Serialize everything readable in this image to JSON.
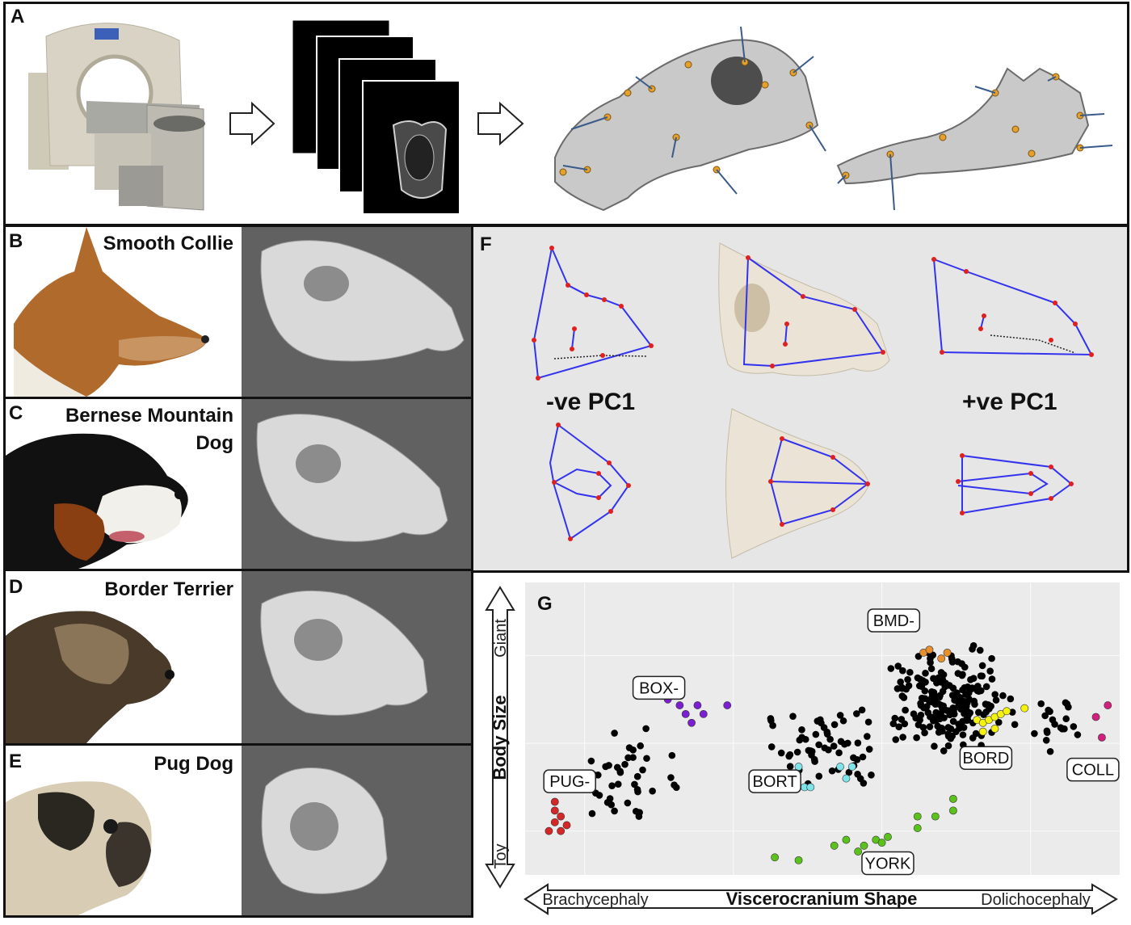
{
  "panels": {
    "a": "A",
    "b": "B",
    "c": "C",
    "d": "D",
    "e": "E",
    "f": "F",
    "g": "G"
  },
  "breeds": {
    "b": "Smooth Collie",
    "c_line1": "Bernese Mountain",
    "c_line2": "Dog",
    "d": "Border Terrier",
    "e": "Pug Dog"
  },
  "pc": {
    "neg": "-ve PC1",
    "pos": "+ve PC1"
  },
  "scatter": {
    "y_title": "Body Size",
    "y_top": "Giant",
    "y_bottom": "Toy",
    "x_title": "Viscerocranium Shape",
    "x_left": "Brachycephaly",
    "x_right": "Dolichocephaly",
    "labels": {
      "bmd": "BMD-",
      "box": "BOX-",
      "pug": "PUG-",
      "bort": "BORT",
      "bord": "BORD",
      "coll": "COLL",
      "york": "YORK"
    },
    "colors": {
      "other": "#000000",
      "pug": "#d62728",
      "box": "#7b1fd1",
      "bmd": "#e8902b",
      "bord": "#f5f20c",
      "bort": "#7fe3ea",
      "coll": "#d1207e",
      "york": "#5bc21c",
      "background": "#ebebeb"
    }
  },
  "chart_data": {
    "type": "scatter",
    "xlabel": "Viscerocranium Shape",
    "ylabel": "Body Size",
    "x_extremes": [
      "Brachycephaly",
      "Dolichocephaly"
    ],
    "y_extremes": [
      "Toy",
      "Giant"
    ],
    "grid": true,
    "series": [
      {
        "name": "PUG-",
        "points": [
          [
            0.05,
            0.18
          ],
          [
            0.06,
            0.2
          ],
          [
            0.04,
            0.15
          ],
          [
            0.05,
            0.22
          ],
          [
            0.07,
            0.17
          ],
          [
            0.08,
            0.3
          ],
          [
            0.09,
            0.32
          ],
          [
            0.05,
            0.25
          ],
          [
            0.06,
            0.15
          ]
        ]
      },
      {
        "name": "BOX-",
        "points": [
          [
            0.24,
            0.6
          ],
          [
            0.25,
            0.62
          ],
          [
            0.26,
            0.58
          ],
          [
            0.27,
            0.55
          ],
          [
            0.28,
            0.52
          ],
          [
            0.29,
            0.58
          ],
          [
            0.3,
            0.55
          ],
          [
            0.34,
            0.58
          ]
        ]
      },
      {
        "name": "BMD-",
        "points": [
          [
            0.67,
            0.76
          ],
          [
            0.68,
            0.77
          ],
          [
            0.7,
            0.74
          ],
          [
            0.71,
            0.76
          ]
        ]
      },
      {
        "name": "BORD",
        "points": [
          [
            0.76,
            0.53
          ],
          [
            0.77,
            0.52
          ],
          [
            0.78,
            0.53
          ],
          [
            0.79,
            0.54
          ],
          [
            0.77,
            0.49
          ],
          [
            0.79,
            0.5
          ],
          [
            0.8,
            0.55
          ],
          [
            0.81,
            0.56
          ],
          [
            0.84,
            0.57
          ]
        ]
      },
      {
        "name": "BORT",
        "points": [
          [
            0.46,
            0.37
          ],
          [
            0.47,
            0.3
          ],
          [
            0.48,
            0.3
          ],
          [
            0.53,
            0.37
          ],
          [
            0.54,
            0.33
          ],
          [
            0.55,
            0.37
          ]
        ]
      },
      {
        "name": "COLL",
        "points": [
          [
            0.96,
            0.54
          ],
          [
            0.97,
            0.47
          ],
          [
            0.98,
            0.58
          ]
        ]
      },
      {
        "name": "YORK",
        "points": [
          [
            0.42,
            0.06
          ],
          [
            0.46,
            0.05
          ],
          [
            0.52,
            0.1
          ],
          [
            0.54,
            0.12
          ],
          [
            0.56,
            0.08
          ],
          [
            0.57,
            0.1
          ],
          [
            0.59,
            0.12
          ],
          [
            0.6,
            0.11
          ],
          [
            0.61,
            0.13
          ],
          [
            0.66,
            0.16
          ],
          [
            0.66,
            0.2
          ],
          [
            0.69,
            0.2
          ],
          [
            0.72,
            0.22
          ],
          [
            0.72,
            0.26
          ]
        ]
      }
    ]
  }
}
